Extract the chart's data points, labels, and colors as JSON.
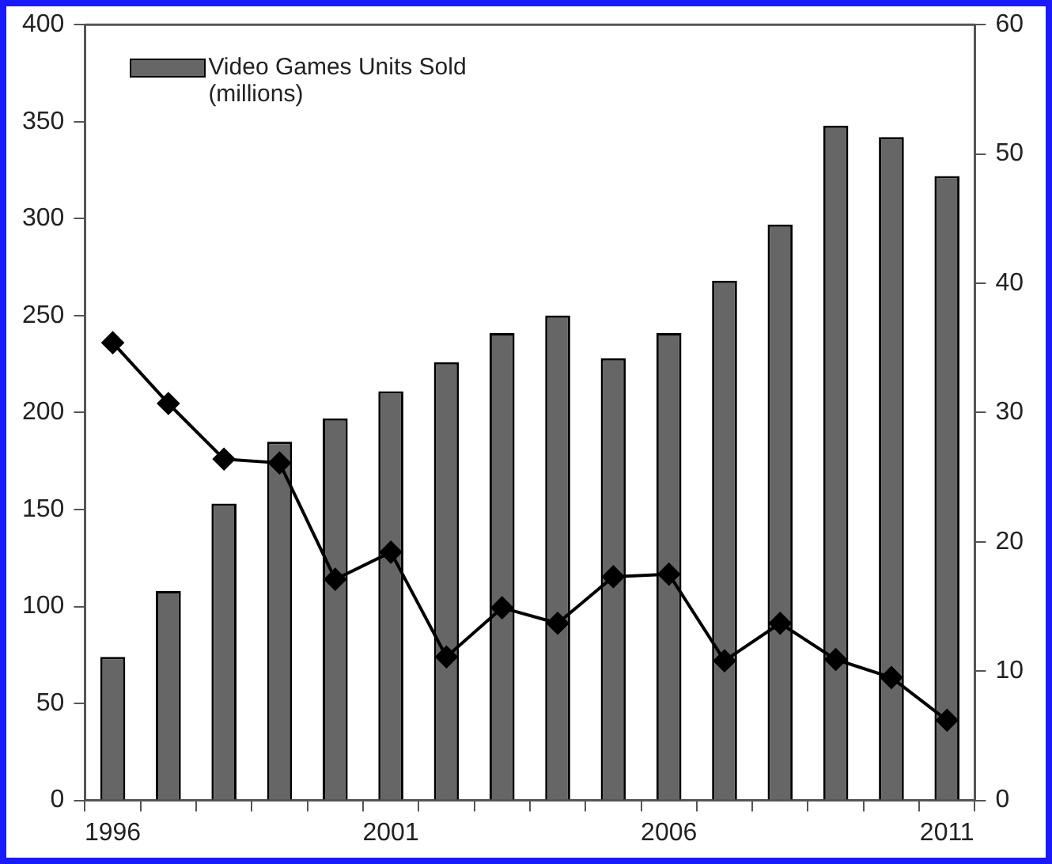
{
  "chart_data": {
    "type": "bar",
    "categories": [
      "1996",
      null,
      null,
      null,
      null,
      "2001",
      null,
      null,
      null,
      null,
      "2006",
      null,
      null,
      null,
      null,
      "2011"
    ],
    "series": [
      {
        "name": "Video Games Units Sold (millions)",
        "color": "#666666",
        "values": [
          74,
          108,
          153,
          185,
          197,
          211,
          226,
          241,
          250,
          228,
          241,
          268,
          297,
          348,
          342,
          322
        ]
      },
      {
        "type": "line",
        "axis": "y2",
        "color": "#000000",
        "marker": "diamond",
        "line_style": "solid",
        "values": [
          35.4,
          30.7,
          26.4,
          26.1,
          17.1,
          19.2,
          11.1,
          14.9,
          13.7,
          17.3,
          17.5,
          10.8,
          13.7,
          10.9,
          9.5,
          6.2
        ]
      }
    ],
    "ylim": [
      0,
      400
    ],
    "yticks": [
      0,
      50,
      100,
      150,
      200,
      250,
      300,
      350,
      400
    ],
    "y2lim": [
      0,
      60
    ],
    "y2ticks": [
      0,
      10,
      20,
      30,
      40,
      50,
      60
    ],
    "grid": false,
    "legend": "top left"
  }
}
